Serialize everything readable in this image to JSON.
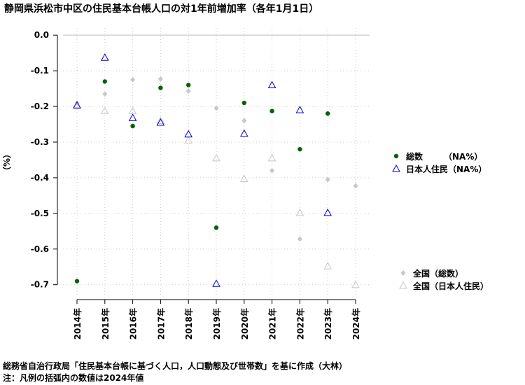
{
  "chart_data": {
    "type": "scatter",
    "title": "静岡県浜松市中区の住民基本台帳人口の対1年前増加率（各年1月1日）",
    "ylabel": "（%）",
    "xlabel": "",
    "categories": [
      "2014年",
      "2015年",
      "2016年",
      "2017年",
      "2018年",
      "2019年",
      "2020年",
      "2021年",
      "2022年",
      "2023年",
      "2024年"
    ],
    "ylim": [
      -0.73,
      0.02
    ],
    "yticks": [
      0.0,
      -0.1,
      -0.2,
      -0.3,
      -0.4,
      -0.5,
      -0.6,
      -0.7
    ],
    "ytick_labels": [
      "0.0",
      "-0.1",
      "-0.2",
      "-0.3",
      "-0.4",
      "-0.5",
      "-0.6",
      "-0.7"
    ],
    "grid": true,
    "legend_position": "right",
    "series": [
      {
        "name": "総数",
        "legend_label": "総数　　　（NA%）",
        "marker": "filled-circle",
        "color": "#006400",
        "values": [
          -0.69,
          -0.13,
          -0.255,
          -0.148,
          -0.14,
          -0.54,
          -0.19,
          -0.213,
          -0.32,
          -0.22,
          null
        ]
      },
      {
        "name": "日本人住民",
        "legend_label": "日本人住民（NA%）",
        "marker": "open-triangle",
        "color": "#0000cd",
        "values": [
          -0.197,
          -0.063,
          -0.232,
          -0.245,
          -0.278,
          -0.697,
          -0.276,
          -0.14,
          -0.21,
          -0.498,
          null
        ]
      },
      {
        "name": "全国（総数）",
        "legend_label": "全国（総数）",
        "marker": "filled-diamond",
        "color": "#c8c8c8",
        "values": [
          -0.19,
          -0.165,
          -0.125,
          -0.123,
          -0.157,
          -0.205,
          -0.24,
          -0.38,
          -0.572,
          -0.405,
          -0.423
        ]
      },
      {
        "name": "全国（日本人住民）",
        "legend_label": "全国（日本人住民）",
        "marker": "open-triangle",
        "color": "#c8c8c8",
        "values": [
          -0.195,
          -0.213,
          -0.213,
          -0.24,
          -0.295,
          -0.345,
          -0.403,
          -0.345,
          -0.498,
          -0.648,
          -0.7
        ]
      }
    ]
  },
  "footnote": {
    "source": "総務省自治行政局「住民基本台帳に基づく人口，人口動態及び世帯数」を基に作成（大林）",
    "note": "注：凡例の括弧内の数値は2024年値"
  }
}
